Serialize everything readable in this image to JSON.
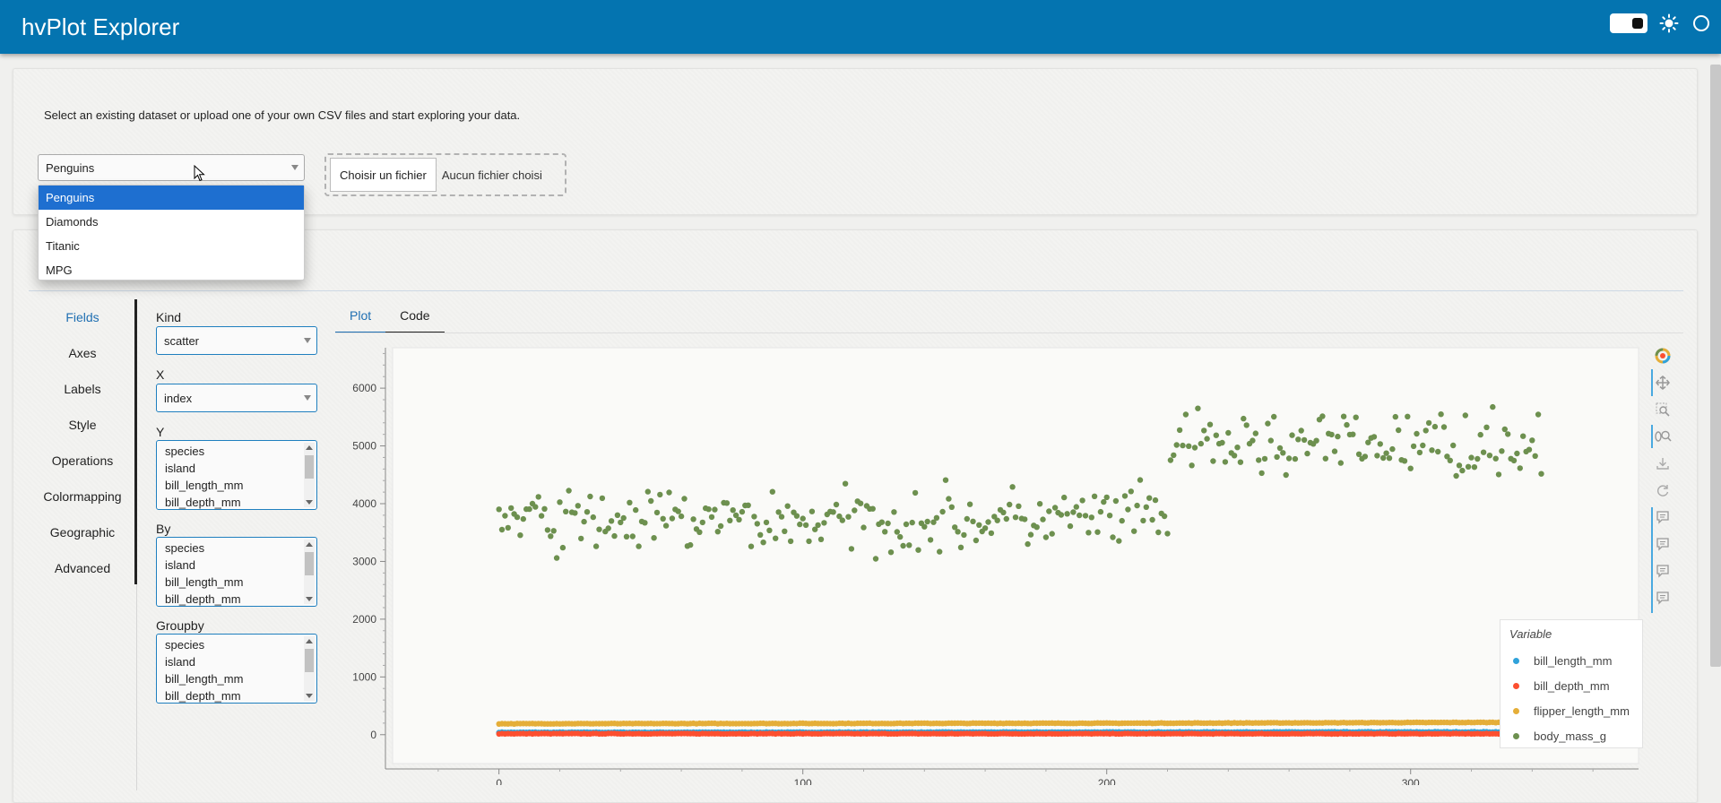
{
  "app": {
    "title": "hvPlot Explorer"
  },
  "intro": {
    "text": "Select an existing dataset or upload one of your own CSV files and start exploring your data."
  },
  "dataset_select": {
    "value": "Penguins",
    "options": [
      "Penguins",
      "Diamonds",
      "Titanic",
      "MPG"
    ]
  },
  "file_upload": {
    "button_label": "Choisir un fichier",
    "status": "Aucun fichier choisi"
  },
  "side_tabs": [
    "Fields",
    "Axes",
    "Labels",
    "Style",
    "Operations",
    "Colormapping",
    "Geographic",
    "Advanced"
  ],
  "fields": {
    "kind_label": "Kind",
    "kind_value": "scatter",
    "x_label": "X",
    "x_value": "index",
    "y_label": "Y",
    "by_label": "By",
    "groupby_label": "Groupby",
    "column_options": [
      "species",
      "island",
      "bill_length_mm",
      "bill_depth_mm"
    ]
  },
  "plot_tabs": [
    "Plot",
    "Code"
  ],
  "colors": {
    "header": "#0474b0",
    "bill_length_mm": "#30a2da",
    "bill_depth_mm": "#fc4f30",
    "flipper_length_mm": "#e5ae38",
    "body_mass_g": "#6d904f"
  },
  "toolbar_icons": [
    "bokeh-logo-icon",
    "pan-icon",
    "box-zoom-icon",
    "wheel-zoom-icon",
    "save-icon",
    "reset-icon",
    "hover-icon",
    "hover-icon",
    "hover-icon",
    "hover-icon"
  ],
  "chart_data": {
    "type": "scatter",
    "title": "",
    "xlabel": "",
    "ylabel": "",
    "xlim": [
      -35,
      375
    ],
    "ylim": [
      -500,
      6700
    ],
    "x_ticks": [
      0,
      100,
      200,
      300
    ],
    "y_ticks": [
      0,
      1000,
      2000,
      3000,
      4000,
      5000,
      6000
    ],
    "legend": {
      "title": "Variable",
      "placement": "bottom-right"
    },
    "x_range": [
      0,
      343
    ],
    "series": [
      {
        "name": "bill_length_mm",
        "trend": [
          [
            0,
            40
          ],
          [
            343,
            48
          ]
        ]
      },
      {
        "name": "bill_depth_mm",
        "trend": [
          [
            0,
            18
          ],
          [
            343,
            16
          ]
        ]
      },
      {
        "name": "flipper_length_mm",
        "trend": [
          [
            0,
            190
          ],
          [
            220,
            200
          ],
          [
            343,
            215
          ]
        ]
      },
      {
        "name": "body_mass_g",
        "trend": [
          [
            0,
            3700
          ],
          [
            151,
            3700
          ],
          [
            220,
            3750
          ],
          [
            221,
            5000
          ],
          [
            343,
            5050
          ]
        ],
        "spread": 420
      }
    ]
  }
}
